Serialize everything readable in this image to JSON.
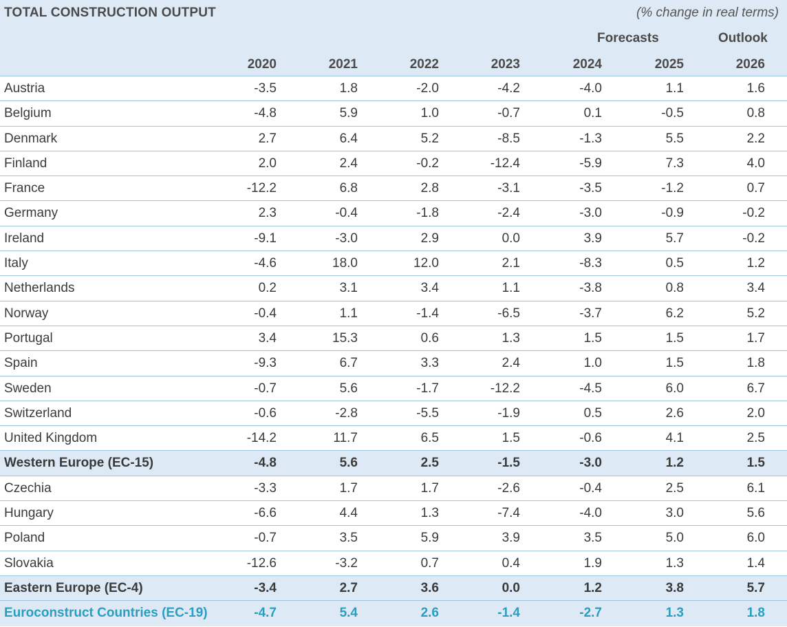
{
  "table": {
    "title": "TOTAL CONSTRUCTION OUTPUT",
    "subtitle": "(% change in real terms)",
    "group_forecasts": "Forecasts",
    "group_outlook": "Outlook",
    "years": [
      "2020",
      "2021",
      "2022",
      "2023",
      "2024",
      "2025",
      "2026"
    ],
    "rows": [
      {
        "name": "Austria",
        "values": [
          "-3.5",
          "1.8",
          "-2.0",
          "-4.2",
          "-4.0",
          "1.1",
          "1.6"
        ]
      },
      {
        "name": "Belgium",
        "values": [
          "-4.8",
          "5.9",
          "1.0",
          "-0.7",
          "0.1",
          "-0.5",
          "0.8"
        ]
      },
      {
        "name": "Denmark",
        "values": [
          "2.7",
          "6.4",
          "5.2",
          "-8.5",
          "-1.3",
          "5.5",
          "2.2"
        ]
      },
      {
        "name": "Finland",
        "values": [
          "2.0",
          "2.4",
          "-0.2",
          "-12.4",
          "-5.9",
          "7.3",
          "4.0"
        ]
      },
      {
        "name": "France",
        "values": [
          "-12.2",
          "6.8",
          "2.8",
          "-3.1",
          "-3.5",
          "-1.2",
          "0.7"
        ]
      },
      {
        "name": "Germany",
        "values": [
          "2.3",
          "-0.4",
          "-1.8",
          "-2.4",
          "-3.0",
          "-0.9",
          "-0.2"
        ]
      },
      {
        "name": "Ireland",
        "values": [
          "-9.1",
          "-3.0",
          "2.9",
          "0.0",
          "3.9",
          "5.7",
          "-0.2"
        ]
      },
      {
        "name": "Italy",
        "values": [
          "-4.6",
          "18.0",
          "12.0",
          "2.1",
          "-8.3",
          "0.5",
          "1.2"
        ]
      },
      {
        "name": "Netherlands",
        "values": [
          "0.2",
          "3.1",
          "3.4",
          "1.1",
          "-3.8",
          "0.8",
          "3.4"
        ]
      },
      {
        "name": "Norway",
        "values": [
          "-0.4",
          "1.1",
          "-1.4",
          "-6.5",
          "-3.7",
          "6.2",
          "5.2"
        ]
      },
      {
        "name": "Portugal",
        "values": [
          "3.4",
          "15.3",
          "0.6",
          "1.3",
          "1.5",
          "1.5",
          "1.7"
        ]
      },
      {
        "name": "Spain",
        "values": [
          "-9.3",
          "6.7",
          "3.3",
          "2.4",
          "1.0",
          "1.5",
          "1.8"
        ]
      },
      {
        "name": "Sweden",
        "values": [
          "-0.7",
          "5.6",
          "-1.7",
          "-12.2",
          "-4.5",
          "6.0",
          "6.7"
        ]
      },
      {
        "name": "Switzerland",
        "values": [
          "-0.6",
          "-2.8",
          "-5.5",
          "-1.9",
          "0.5",
          "2.6",
          "2.0"
        ]
      },
      {
        "name": "United Kingdom",
        "values": [
          "-14.2",
          "11.7",
          "6.5",
          "1.5",
          "-0.6",
          "4.1",
          "2.5"
        ]
      },
      {
        "name": "Western Europe (EC-15)",
        "values": [
          "-4.8",
          "5.6",
          "2.5",
          "-1.5",
          "-3.0",
          "1.2",
          "1.5"
        ]
      },
      {
        "name": "Czechia",
        "values": [
          "-3.3",
          "1.7",
          "1.7",
          "-2.6",
          "-0.4",
          "2.5",
          "6.1"
        ]
      },
      {
        "name": "Hungary",
        "values": [
          "-6.6",
          "4.4",
          "1.3",
          "-7.4",
          "-4.0",
          "3.0",
          "5.6"
        ]
      },
      {
        "name": "Poland",
        "values": [
          "-0.7",
          "3.5",
          "5.9",
          "3.9",
          "3.5",
          "5.0",
          "6.0"
        ]
      },
      {
        "name": "Slovakia",
        "values": [
          "-12.6",
          "-3.2",
          "0.7",
          "0.4",
          "1.9",
          "1.3",
          "1.4"
        ]
      },
      {
        "name": "Eastern Europe (EC-4)",
        "values": [
          "-3.4",
          "2.7",
          "3.6",
          "0.0",
          "1.2",
          "3.8",
          "5.7"
        ]
      },
      {
        "name": "Euroconstruct Countries (EC-19)",
        "values": [
          "-4.7",
          "5.4",
          "2.6",
          "-1.4",
          "-2.7",
          "1.3",
          "1.8"
        ]
      }
    ]
  },
  "colors": {
    "header_bg": "#dde9f4",
    "rule": "#9cc6dd",
    "total_text": "#2a9ec0"
  }
}
